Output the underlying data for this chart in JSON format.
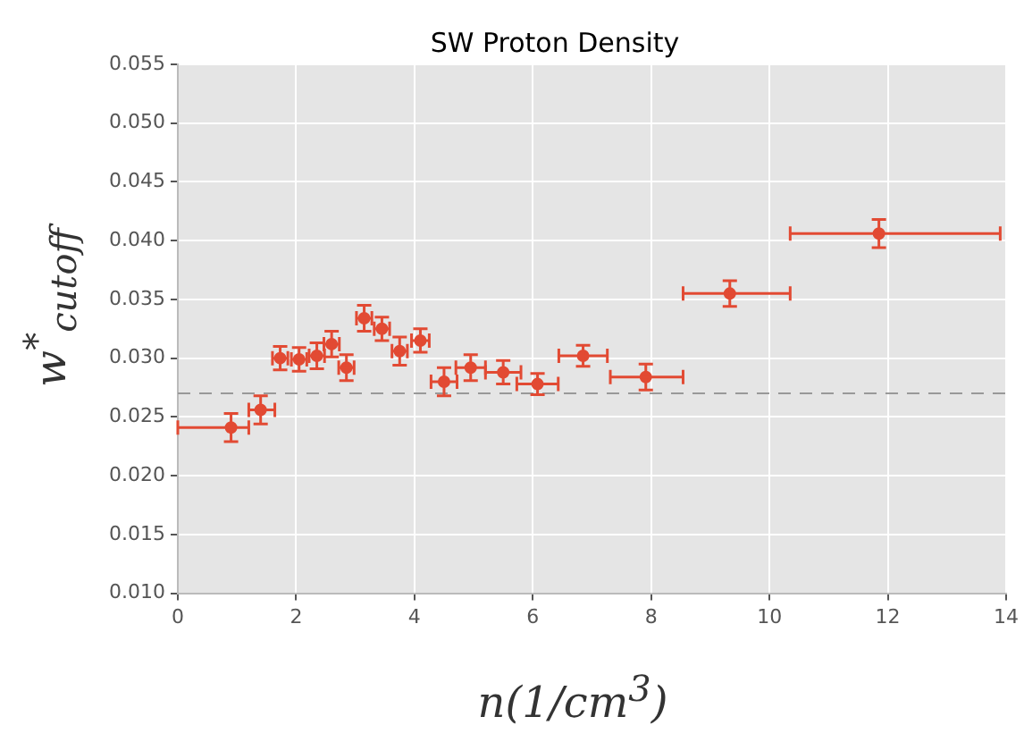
{
  "chart_data": {
    "type": "scatter",
    "title": "SW Proton Density",
    "xlabel": "n(1/cm$^{3}$)",
    "ylabel": "w$^{*}$$_{cutoff}$",
    "x": [
      0.9,
      1.4,
      1.73,
      2.05,
      2.35,
      2.6,
      2.85,
      3.15,
      3.45,
      3.75,
      4.1,
      4.5,
      4.95,
      5.5,
      6.08,
      6.85,
      7.91,
      9.33,
      11.85
    ],
    "series": [
      {
        "color": "#e24a33",
        "values": [
          0.0241,
          0.0256,
          0.03,
          0.0299,
          0.0302,
          0.0312,
          0.0292,
          0.0334,
          0.0325,
          0.0306,
          0.0315,
          0.028,
          0.0292,
          0.0288,
          0.0278,
          0.0302,
          0.0284,
          0.0355,
          0.0406
        ],
        "errors": [
          0.0012,
          0.0012,
          0.001,
          0.001,
          0.0011,
          0.0011,
          0.0011,
          0.0011,
          0.001,
          0.0012,
          0.001,
          0.0012,
          0.0011,
          0.001,
          0.0009,
          0.0009,
          0.0011,
          0.0011,
          0.0012
        ],
        "xerrors": [
          [
            0,
            1.2
          ],
          [
            1.2,
            1.64
          ],
          0.13,
          0.13,
          0.13,
          0.13,
          0.13,
          0.13,
          0.13,
          0.13,
          0.15,
          0.22,
          0.25,
          0.3,
          0.35,
          0.41,
          [
            7.31,
            8.54
          ],
          [
            8.54,
            10.35
          ],
          [
            10.35,
            13.9
          ]
        ]
      }
    ],
    "xlim": [
      0,
      14
    ],
    "xticks": [
      0,
      2,
      4,
      6,
      8,
      10,
      12,
      14
    ],
    "ylim": [
      0.01,
      0.055
    ],
    "yticks": [
      {
        "value": 0.01,
        "label": "0.010"
      },
      {
        "value": 0.015,
        "label": "0.015"
      },
      {
        "value": 0.02,
        "label": "0.020"
      },
      {
        "value": 0.025,
        "label": "0.025"
      },
      {
        "value": 0.03,
        "label": "0.030"
      },
      {
        "value": 0.035,
        "label": "0.035"
      },
      {
        "value": 0.04,
        "label": "0.040"
      },
      {
        "value": 0.045,
        "label": "0.045"
      },
      {
        "value": 0.05,
        "label": "0.050"
      },
      {
        "value": 0.055,
        "label": "0.055"
      }
    ],
    "ref_lines": [
      {
        "axis": "y",
        "value": 0.027,
        "color": "#999999",
        "line_style": "dashed"
      }
    ],
    "grid": true,
    "legend": false,
    "marker": "circle"
  }
}
